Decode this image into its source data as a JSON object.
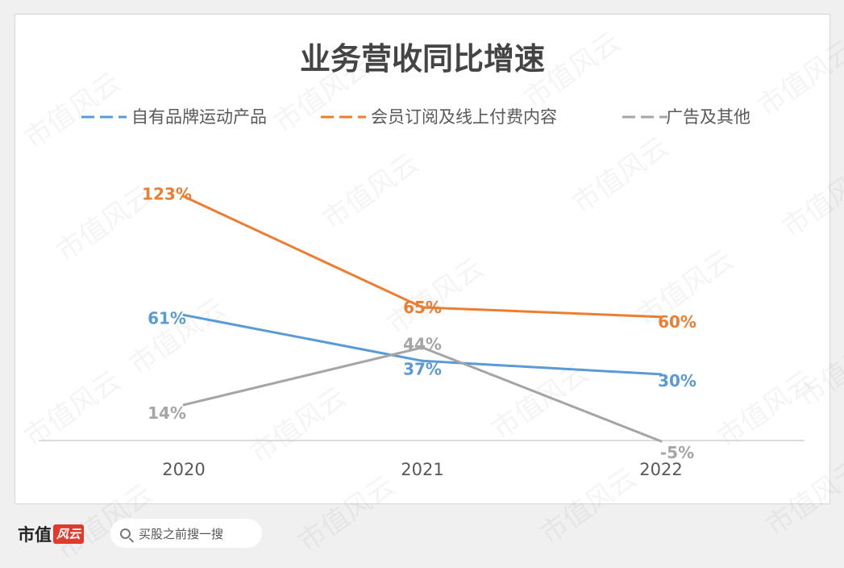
{
  "chart_data": {
    "type": "line",
    "title": "业务营收同比增速",
    "categories": [
      "2020",
      "2021",
      "2022"
    ],
    "series": [
      {
        "name": "自有品牌运动产品",
        "values": [
          61,
          37,
          30
        ],
        "labels": [
          "61%",
          "37%",
          "30%"
        ],
        "color": "#5b9bd5"
      },
      {
        "name": "会员订阅及线上付费内容",
        "values": [
          123,
          65,
          60
        ],
        "labels": [
          "123%",
          "65%",
          "60%"
        ],
        "color": "#ed7d31"
      },
      {
        "name": "广告及其他",
        "values": [
          14,
          44,
          -5
        ],
        "labels": [
          "14%",
          "44%",
          "-5%"
        ],
        "color": "#a5a5a5"
      }
    ],
    "xlabel": "",
    "ylabel": "",
    "ylim": [
      -5,
      135
    ],
    "legend": "top",
    "grid": false
  },
  "footer": {
    "brand": "市值",
    "brand_logo": "风云",
    "search_placeholder": "买股之前搜一搜"
  },
  "watermark": "市值风云"
}
